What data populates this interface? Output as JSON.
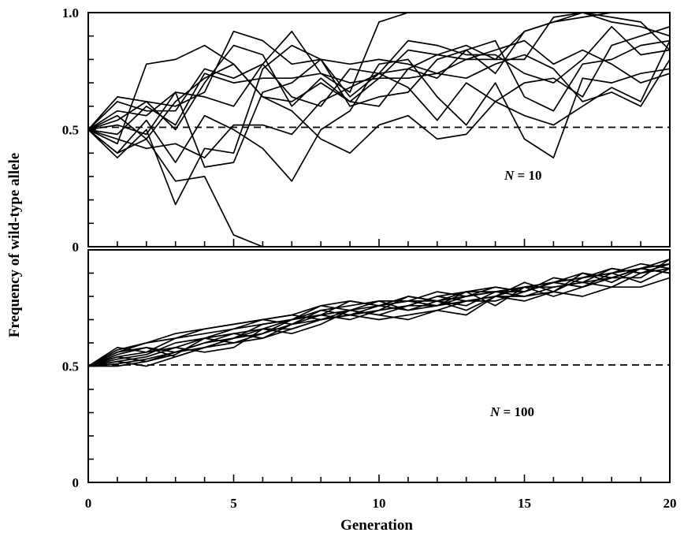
{
  "chart_data": [
    {
      "type": "line",
      "panel": "top",
      "annotation": {
        "prefix": "N",
        "value": "= 10"
      },
      "xlim": [
        0,
        20
      ],
      "ylim": [
        0,
        1.0
      ],
      "ytick_labels": [
        {
          "v": 1.0,
          "label": "1.0"
        },
        {
          "v": 0.5,
          "label": "0.5"
        },
        {
          "v": 0.0,
          "label": "0"
        }
      ],
      "reference_line": 0.51,
      "x": [
        0,
        1,
        2,
        3,
        4,
        5,
        6,
        7,
        8,
        9,
        10,
        11,
        12,
        13,
        14,
        15,
        16,
        17,
        18,
        19,
        20
      ],
      "series": [
        {
          "values": [
            0.5,
            0.38,
            0.5,
            0.18,
            0.42,
            0.4,
            0.76,
            0.86,
            0.8,
            0.78,
            0.8,
            0.78,
            0.74,
            0.8,
            0.8,
            0.92,
            0.96,
            0.98,
            1.0,
            1.0,
            1.0
          ]
        },
        {
          "values": [
            0.5,
            0.4,
            0.46,
            0.28,
            0.3,
            0.05,
            0.0,
            0.0,
            null,
            null,
            null,
            null,
            null,
            null,
            null,
            null,
            null,
            null,
            null,
            null,
            null
          ]
        },
        {
          "values": [
            0.5,
            0.48,
            0.6,
            0.52,
            0.74,
            0.7,
            0.72,
            0.72,
            0.74,
            0.7,
            0.72,
            0.72,
            0.74,
            0.72,
            0.78,
            0.82,
            0.76,
            0.62,
            0.66,
            0.6,
            0.8
          ]
        },
        {
          "values": [
            0.5,
            0.56,
            0.46,
            0.62,
            0.72,
            0.78,
            0.64,
            0.62,
            0.7,
            0.62,
            0.72,
            0.84,
            0.82,
            0.86,
            0.8,
            0.8,
            0.98,
            1.0,
            0.96,
            0.94,
            0.9
          ]
        },
        {
          "values": [
            0.5,
            0.52,
            0.48,
            0.66,
            0.34,
            0.36,
            0.66,
            0.7,
            0.8,
            0.64,
            0.74,
            0.68,
            0.54,
            0.7,
            0.62,
            0.7,
            0.72,
            0.64,
            0.86,
            0.9,
            0.94
          ]
        },
        {
          "values": [
            0.5,
            0.62,
            0.58,
            0.58,
            0.76,
            0.72,
            0.78,
            0.64,
            0.6,
            0.76,
            0.74,
            0.76,
            0.82,
            0.8,
            0.84,
            0.88,
            0.78,
            0.84,
            0.78,
            0.7,
            0.74
          ]
        },
        {
          "values": [
            0.5,
            0.64,
            0.62,
            0.5,
            0.7,
            0.86,
            0.82,
            0.6,
            0.72,
            0.62,
            0.6,
            0.76,
            0.72,
            0.84,
            0.74,
            0.92,
            0.96,
            1.0,
            0.98,
            0.96,
            0.84
          ]
        },
        {
          "values": [
            0.5,
            0.46,
            0.42,
            0.44,
            0.38,
            0.52,
            0.52,
            0.48,
            0.62,
            0.68,
            0.74,
            0.88,
            0.86,
            0.82,
            0.82,
            0.74,
            0.7,
            0.8,
            0.94,
            0.82,
            0.84
          ]
        },
        {
          "values": [
            0.5,
            0.54,
            0.62,
            0.6,
            0.66,
            0.92,
            0.88,
            0.78,
            0.8,
            0.6,
            0.64,
            0.66,
            0.8,
            0.84,
            0.88,
            0.64,
            0.58,
            0.78,
            0.8,
            0.86,
            0.88
          ]
        },
        {
          "values": [
            0.5,
            0.58,
            0.56,
            0.66,
            0.64,
            0.6,
            0.78,
            0.92,
            0.74,
            0.66,
            0.96,
            1.0,
            1.0,
            null,
            null,
            null,
            null,
            null,
            null,
            null,
            null
          ]
        },
        {
          "values": [
            0.5,
            0.44,
            0.78,
            0.8,
            0.86,
            0.78,
            0.64,
            0.58,
            0.46,
            0.4,
            0.52,
            0.56,
            0.46,
            0.48,
            0.62,
            0.56,
            0.52,
            0.6,
            0.68,
            0.62,
            0.88
          ]
        },
        {
          "values": [
            0.5,
            0.4,
            0.54,
            0.36,
            0.56,
            0.5,
            0.42,
            0.28,
            0.5,
            0.58,
            0.78,
            0.8,
            0.64,
            0.52,
            0.7,
            0.46,
            0.38,
            0.72,
            0.7,
            0.74,
            0.76
          ]
        }
      ]
    },
    {
      "type": "line",
      "panel": "bottom",
      "annotation": {
        "prefix": "N",
        "value": "= 100"
      },
      "xlabel": "Generation",
      "xlim": [
        0,
        20
      ],
      "ylim": [
        0,
        1.0
      ],
      "xtick_labels": [
        {
          "v": 0,
          "label": "0"
        },
        {
          "v": 5,
          "label": "5"
        },
        {
          "v": 10,
          "label": "10"
        },
        {
          "v": 15,
          "label": "15"
        },
        {
          "v": 20,
          "label": "20"
        }
      ],
      "ytick_labels": [
        {
          "v": 0.5,
          "label": "0.5"
        },
        {
          "v": 0.0,
          "label": "0"
        }
      ],
      "reference_line": 0.505,
      "x": [
        0,
        1,
        2,
        3,
        4,
        5,
        6,
        7,
        8,
        9,
        10,
        11,
        12,
        13,
        14,
        15,
        16,
        17,
        18,
        19,
        20
      ],
      "series": [
        {
          "values": [
            0.5,
            0.56,
            0.6,
            0.62,
            0.64,
            0.66,
            0.68,
            0.7,
            0.72,
            0.74,
            0.76,
            0.78,
            0.78,
            0.8,
            0.82,
            0.82,
            0.86,
            0.88,
            0.9,
            0.92,
            0.94
          ]
        },
        {
          "values": [
            0.5,
            0.52,
            0.5,
            0.54,
            0.58,
            0.62,
            0.66,
            0.66,
            0.7,
            0.72,
            0.74,
            0.76,
            0.76,
            0.78,
            0.8,
            0.84,
            0.84,
            0.86,
            0.88,
            0.92,
            0.9
          ]
        },
        {
          "values": [
            0.5,
            0.54,
            0.56,
            0.58,
            0.62,
            0.66,
            0.7,
            0.68,
            0.74,
            0.72,
            0.76,
            0.74,
            0.78,
            0.76,
            0.82,
            0.8,
            0.84,
            0.86,
            0.84,
            0.9,
            0.92
          ]
        },
        {
          "values": [
            0.5,
            0.5,
            0.52,
            0.56,
            0.6,
            0.62,
            0.64,
            0.68,
            0.7,
            0.72,
            0.74,
            0.76,
            0.8,
            0.78,
            0.78,
            0.82,
            0.86,
            0.84,
            0.88,
            0.88,
            0.96
          ]
        },
        {
          "values": [
            0.5,
            0.58,
            0.56,
            0.62,
            0.66,
            0.68,
            0.7,
            0.72,
            0.76,
            0.74,
            0.72,
            0.7,
            0.74,
            0.78,
            0.8,
            0.8,
            0.82,
            0.9,
            0.86,
            0.92,
            0.9
          ]
        },
        {
          "values": [
            0.5,
            0.53,
            0.55,
            0.6,
            0.62,
            0.64,
            0.66,
            0.7,
            0.72,
            0.78,
            0.76,
            0.78,
            0.76,
            0.82,
            0.84,
            0.82,
            0.88,
            0.86,
            0.92,
            0.9,
            0.94
          ]
        },
        {
          "values": [
            0.5,
            0.55,
            0.58,
            0.56,
            0.6,
            0.64,
            0.62,
            0.68,
            0.72,
            0.7,
            0.74,
            0.8,
            0.78,
            0.74,
            0.8,
            0.86,
            0.82,
            0.88,
            0.9,
            0.86,
            0.92
          ]
        },
        {
          "values": [
            0.5,
            0.52,
            0.54,
            0.58,
            0.56,
            0.58,
            0.66,
            0.64,
            0.68,
            0.74,
            0.72,
            0.76,
            0.8,
            0.82,
            0.76,
            0.84,
            0.8,
            0.84,
            0.9,
            0.94,
            0.92
          ]
        },
        {
          "values": [
            0.5,
            0.57,
            0.6,
            0.64,
            0.66,
            0.68,
            0.7,
            0.72,
            0.7,
            0.74,
            0.78,
            0.78,
            0.82,
            0.8,
            0.82,
            0.84,
            0.86,
            0.88,
            0.92,
            0.9,
            0.94
          ]
        },
        {
          "values": [
            0.5,
            0.51,
            0.53,
            0.56,
            0.58,
            0.6,
            0.64,
            0.7,
            0.74,
            0.76,
            0.78,
            0.74,
            0.76,
            0.8,
            0.84,
            0.82,
            0.86,
            0.84,
            0.88,
            0.92,
            0.96
          ]
        },
        {
          "values": [
            0.5,
            0.54,
            0.52,
            0.55,
            0.62,
            0.6,
            0.62,
            0.66,
            0.7,
            0.72,
            0.7,
            0.72,
            0.74,
            0.72,
            0.8,
            0.78,
            0.82,
            0.8,
            0.84,
            0.84,
            0.88
          ]
        },
        {
          "values": [
            0.5,
            0.56,
            0.58,
            0.54,
            0.58,
            0.62,
            0.68,
            0.7,
            0.76,
            0.78,
            0.76,
            0.8,
            0.78,
            0.82,
            0.82,
            0.84,
            0.86,
            0.9,
            0.88,
            0.92,
            0.9
          ]
        }
      ]
    }
  ],
  "yaxis_title": "Frequency of wild-type allele"
}
